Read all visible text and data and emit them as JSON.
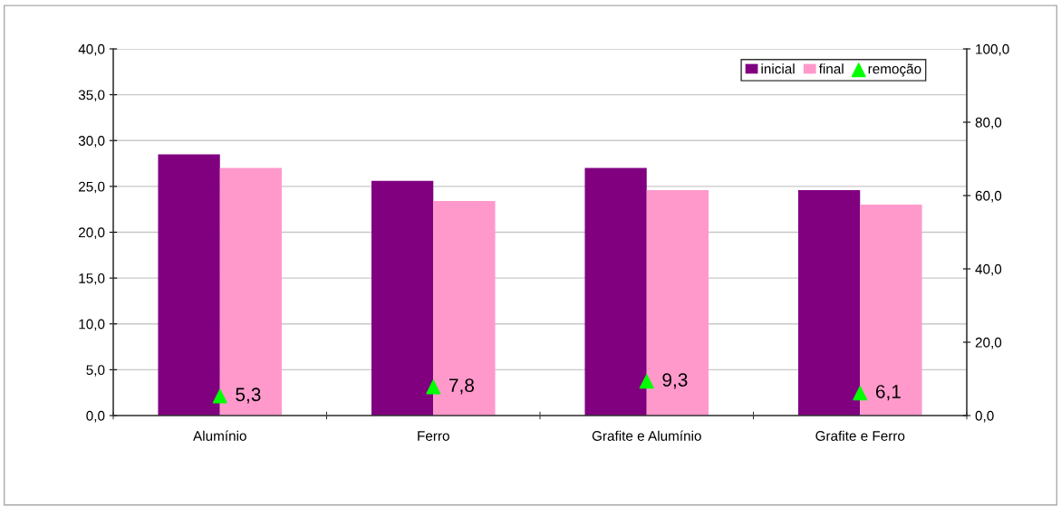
{
  "chart_data": {
    "type": "bar",
    "categories": [
      "Alumínio",
      "Ferro",
      "Grafite e Alumínio",
      "Grafite e Ferro"
    ],
    "series": [
      {
        "name": "inicial",
        "color": "#800080",
        "values": [
          28.5,
          25.6,
          27.0,
          24.6
        ]
      },
      {
        "name": "final",
        "color": "#ff99cc",
        "values": [
          27.0,
          23.4,
          24.6,
          23.0
        ]
      },
      {
        "name": "remoção",
        "color": "#00ff00",
        "type": "scatter",
        "marker": "triangle",
        "axis": "y2",
        "values": [
          5.3,
          7.8,
          9.3,
          6.1
        ],
        "value_labels": [
          "5,3",
          "7,8",
          "9,3",
          "6,1"
        ]
      }
    ],
    "ylim": [
      0,
      40
    ],
    "yticks": [
      {
        "value": 0,
        "label": "0,0"
      },
      {
        "value": 5,
        "label": "5,0"
      },
      {
        "value": 10,
        "label": "10,0"
      },
      {
        "value": 15,
        "label": "15,0"
      },
      {
        "value": 20,
        "label": "20,0"
      },
      {
        "value": 25,
        "label": "25,0"
      },
      {
        "value": 30,
        "label": "30,0"
      },
      {
        "value": 35,
        "label": "35,0"
      },
      {
        "value": 40,
        "label": "40,0"
      }
    ],
    "y2lim": [
      0,
      100
    ],
    "y2ticks": [
      {
        "value": 0,
        "label": "0,0"
      },
      {
        "value": 20,
        "label": "20,0"
      },
      {
        "value": 40,
        "label": "40,0"
      },
      {
        "value": 60,
        "label": "60,0"
      },
      {
        "value": 80,
        "label": "80,0"
      },
      {
        "value": 100,
        "label": "100,0"
      }
    ],
    "grid": "y",
    "legend": "top right"
  }
}
